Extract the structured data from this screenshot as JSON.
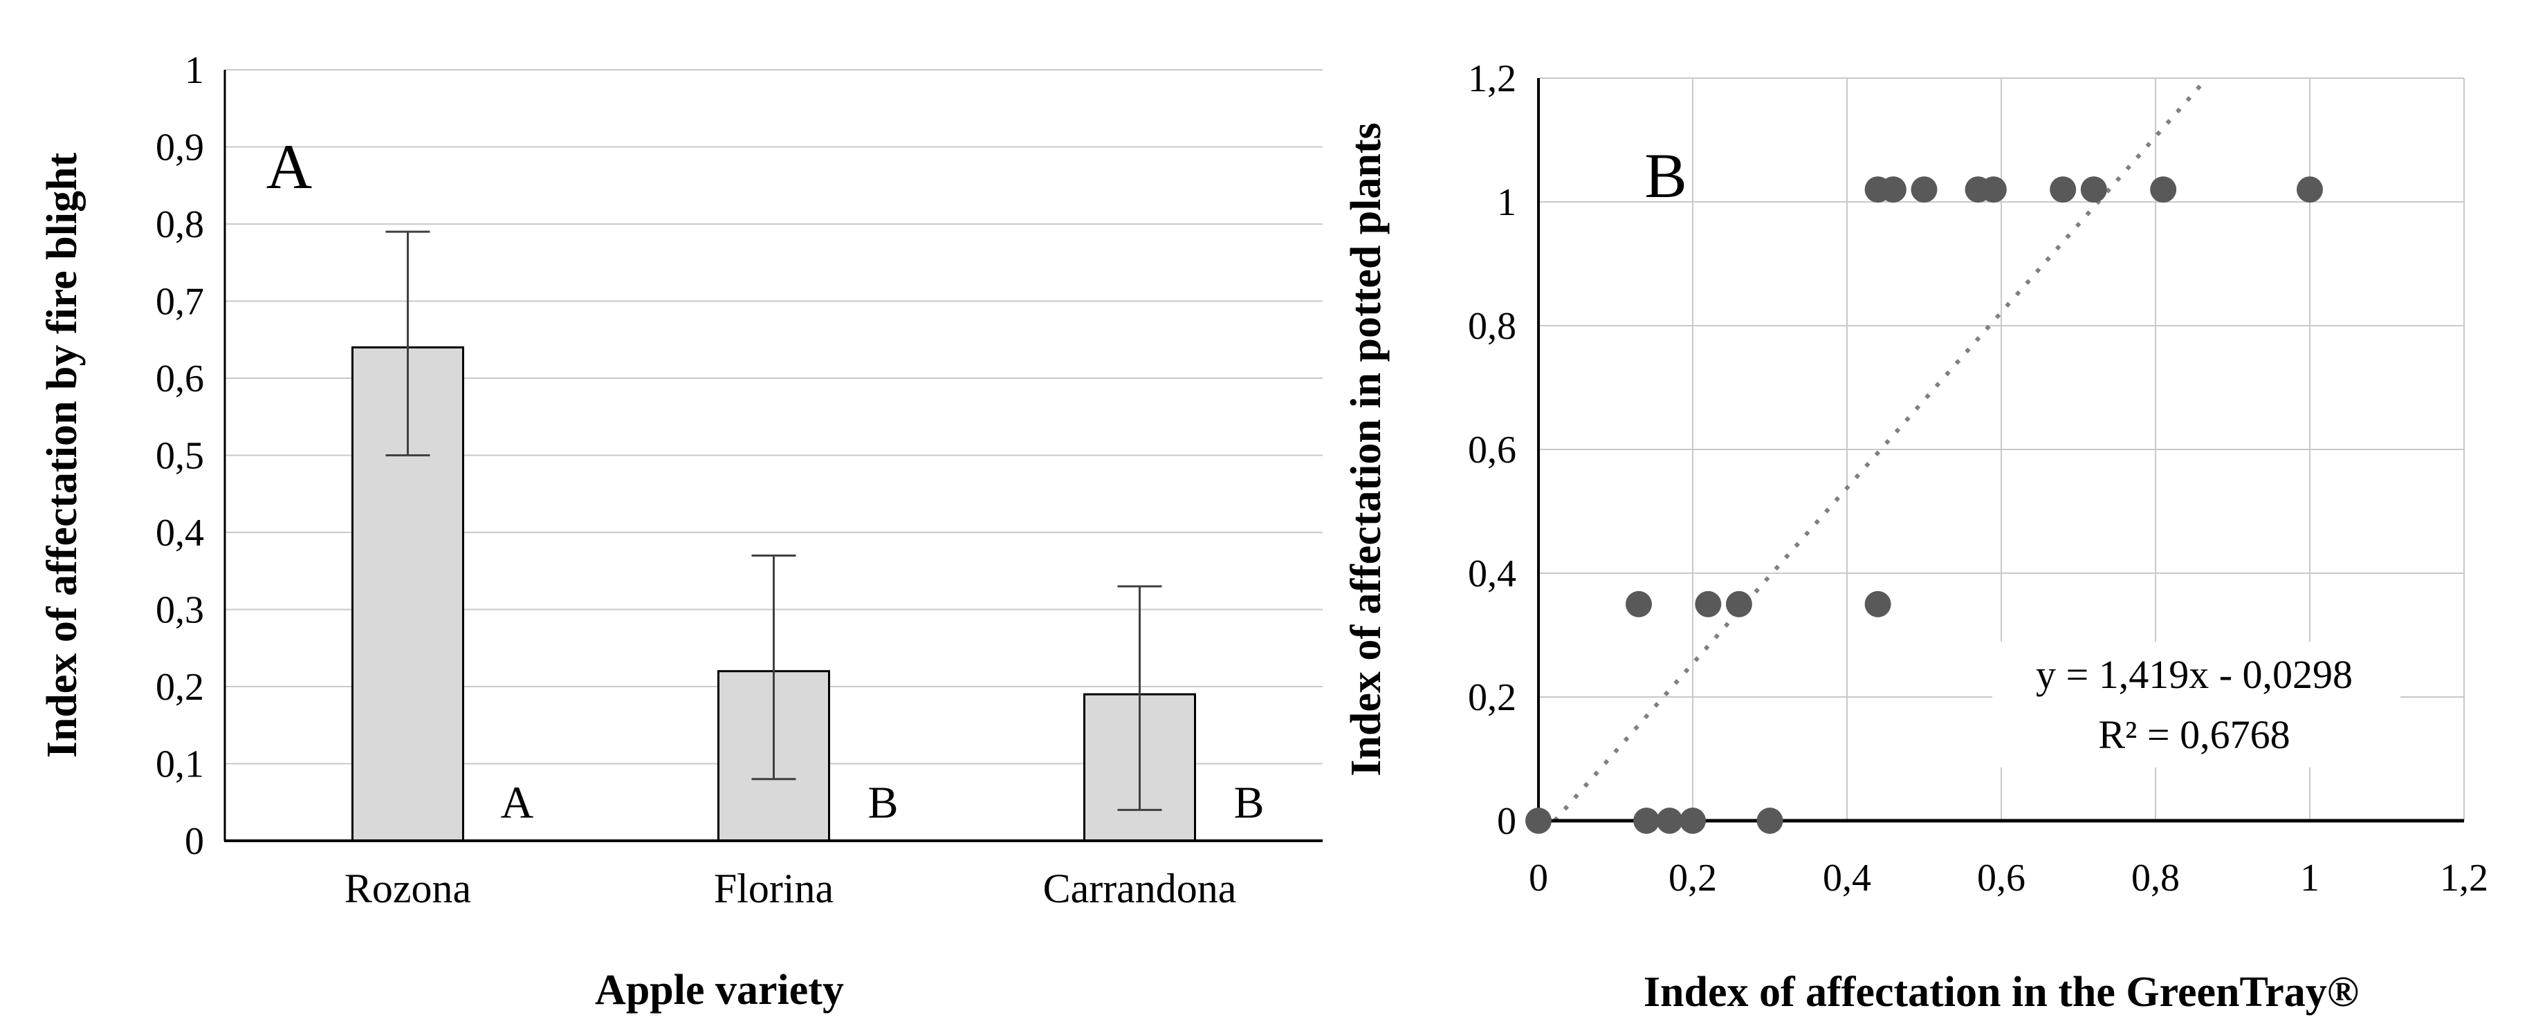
{
  "figure": {
    "background": "#ffffff",
    "panel_labels": [
      "A",
      "B"
    ]
  },
  "colors": {
    "bar_fill": "#d9d9d9",
    "bar_border": "#000000",
    "gridline": "#c9c9c9",
    "axis": "#000000",
    "error_bar": "#404040",
    "scatter_point": "#595959",
    "trendline": "#7f7f7f",
    "text": "#000000"
  },
  "chart_data": [
    {
      "type": "bar",
      "panel_label": "A",
      "xlabel": "Apple variety",
      "ylabel": "Index of affectation by fire blight",
      "categories": [
        "Rozona",
        "Florina",
        "Carrandona"
      ],
      "values": [
        0.64,
        0.22,
        0.19
      ],
      "error_low": [
        0.5,
        0.08,
        0.04
      ],
      "error_high": [
        0.79,
        0.37,
        0.33
      ],
      "significance_letters": [
        "A",
        "B",
        "B"
      ],
      "ylim": [
        0,
        1
      ],
      "ytick_values": [
        1,
        0.9,
        0.8,
        0.7,
        0.6,
        0.5,
        0.4,
        0.3,
        0.2,
        0.1,
        0
      ],
      "ytick_labels": [
        "1",
        "0,9",
        "0,8",
        "0,7",
        "0,6",
        "0,5",
        "0,4",
        "0,3",
        "0,2",
        "0,1",
        "0"
      ],
      "grid": "horizontal",
      "legend": "none"
    },
    {
      "type": "scatter",
      "panel_label": "B",
      "xlabel": "Index of affectation in the GreenTray®",
      "ylabel": "Index of affectation in potted plants",
      "xlim": [
        0,
        1.2
      ],
      "ylim": [
        0,
        1.2
      ],
      "xtick_values": [
        0,
        0.2,
        0.4,
        0.6,
        0.8,
        1,
        1.2
      ],
      "xtick_labels": [
        "0",
        "0,2",
        "0,4",
        "0,6",
        "0,8",
        "1",
        "1,2"
      ],
      "ytick_values": [
        1.2,
        1,
        0.8,
        0.6,
        0.4,
        0.2,
        0
      ],
      "ytick_labels": [
        "1,2",
        "1",
        "0,8",
        "0,6",
        "0,4",
        "0,2",
        "0"
      ],
      "grid": "both",
      "points": [
        [
          0.0,
          0.0
        ],
        [
          0.14,
          0.0
        ],
        [
          0.17,
          0.0
        ],
        [
          0.2,
          0.0
        ],
        [
          0.3,
          0.0
        ],
        [
          0.13,
          0.35
        ],
        [
          0.22,
          0.35
        ],
        [
          0.26,
          0.35
        ],
        [
          0.44,
          0.35
        ],
        [
          0.44,
          1.02
        ],
        [
          0.46,
          1.02
        ],
        [
          0.5,
          1.02
        ],
        [
          0.57,
          1.02
        ],
        [
          0.59,
          1.02
        ],
        [
          0.68,
          1.02
        ],
        [
          0.72,
          1.02
        ],
        [
          0.81,
          1.02
        ],
        [
          1.0,
          1.02
        ]
      ],
      "trendline": {
        "slope": 1.419,
        "intercept": -0.0298,
        "style": "dotted",
        "equation_label": "y = 1,419x - 0,0298",
        "r_squared_label": "R² = 0,6768"
      },
      "legend": "none"
    }
  ]
}
